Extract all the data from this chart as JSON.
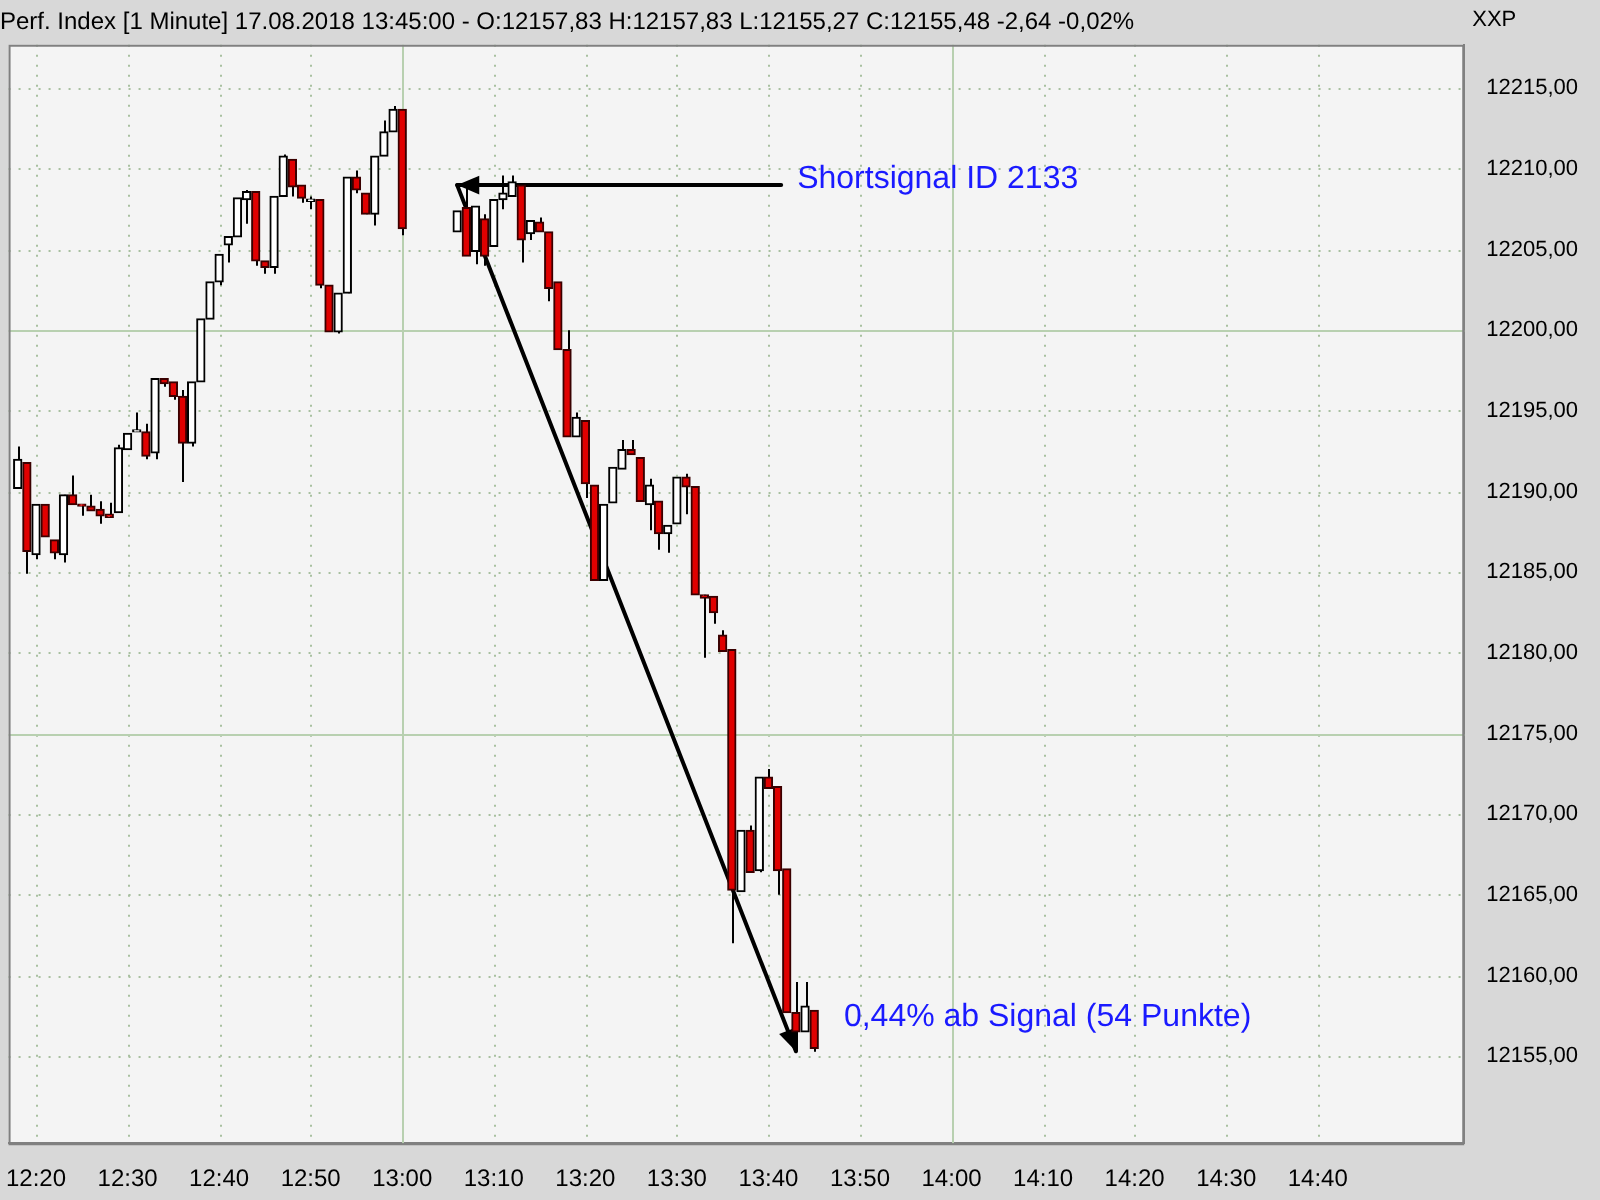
{
  "chart_data": {
    "type": "candlestick",
    "title": "Perf. Index [1 Minute] 17.08.2018 13:45:00 - O:12157,83 H:12157,83 L:12155,27 C:12155,48 -2,64 -0,02%",
    "annotations": [
      {
        "text": "Shortsignal ID 2133",
        "x": "2018-08-17T13:06",
        "y": 12209
      },
      {
        "text": "0,44% ab Signal (54 Punkte)",
        "x": "2018-08-17T13:43",
        "y": 12155.3
      },
      "XXP"
    ],
    "x": [
      "2018-08-17T12:18",
      "2018-08-17T12:19",
      "2018-08-17T12:20",
      "2018-08-17T12:21",
      "2018-08-17T12:22",
      "2018-08-17T12:23",
      "2018-08-17T12:24",
      "2018-08-17T12:25",
      "2018-08-17T12:26",
      "2018-08-17T12:27",
      "2018-08-17T12:28",
      "2018-08-17T12:29",
      "2018-08-17T12:30",
      "2018-08-17T12:31",
      "2018-08-17T12:32",
      "2018-08-17T12:33",
      "2018-08-17T12:34",
      "2018-08-17T12:35",
      "2018-08-17T12:36",
      "2018-08-17T12:37",
      "2018-08-17T12:38",
      "2018-08-17T12:39",
      "2018-08-17T12:40",
      "2018-08-17T12:41",
      "2018-08-17T12:42",
      "2018-08-17T12:43",
      "2018-08-17T12:44",
      "2018-08-17T12:45",
      "2018-08-17T12:46",
      "2018-08-17T12:47",
      "2018-08-17T12:48",
      "2018-08-17T12:49",
      "2018-08-17T12:50",
      "2018-08-17T12:51",
      "2018-08-17T12:52",
      "2018-08-17T12:53",
      "2018-08-17T12:54",
      "2018-08-17T12:55",
      "2018-08-17T12:56",
      "2018-08-17T12:57",
      "2018-08-17T12:58",
      "2018-08-17T12:59",
      "2018-08-17T13:00",
      "2018-08-17T13:06",
      "2018-08-17T13:07",
      "2018-08-17T13:08",
      "2018-08-17T13:09",
      "2018-08-17T13:10",
      "2018-08-17T13:11",
      "2018-08-17T13:12",
      "2018-08-17T13:13",
      "2018-08-17T13:14",
      "2018-08-17T13:15",
      "2018-08-17T13:16",
      "2018-08-17T13:17",
      "2018-08-17T13:18",
      "2018-08-17T13:19",
      "2018-08-17T13:20",
      "2018-08-17T13:21",
      "2018-08-17T13:22",
      "2018-08-17T13:23",
      "2018-08-17T13:24",
      "2018-08-17T13:25",
      "2018-08-17T13:26",
      "2018-08-17T13:27",
      "2018-08-17T13:28",
      "2018-08-17T13:29",
      "2018-08-17T13:30",
      "2018-08-17T13:31",
      "2018-08-17T13:32",
      "2018-08-17T13:33",
      "2018-08-17T13:34",
      "2018-08-17T13:35",
      "2018-08-17T13:36",
      "2018-08-17T13:37",
      "2018-08-17T13:38",
      "2018-08-17T13:39",
      "2018-08-17T13:40",
      "2018-08-17T13:41",
      "2018-08-17T13:42",
      "2018-08-17T13:43",
      "2018-08-17T13:44",
      "2018-08-17T13:45"
    ],
    "ohlc": [
      [
        12190.2,
        12192.8,
        12190.2,
        12192.0
      ],
      [
        12191.8,
        12191.8,
        12184.9,
        12186.3
      ],
      [
        12186.1,
        12189.2,
        12185.8,
        12189.2
      ],
      [
        12189.2,
        12189.2,
        12187.2,
        12187.2
      ],
      [
        12187.0,
        12187.0,
        12185.8,
        12186.2
      ],
      [
        12186.1,
        12189.8,
        12185.6,
        12189.8
      ],
      [
        12189.8,
        12191.0,
        12189.2,
        12189.2
      ],
      [
        12189.2,
        12189.2,
        12188.5,
        12189.1
      ],
      [
        12189.1,
        12189.8,
        12188.8,
        12188.8
      ],
      [
        12188.9,
        12189.4,
        12188.0,
        12188.5
      ],
      [
        12188.6,
        12189.3,
        12188.4,
        12188.4
      ],
      [
        12188.7,
        12192.9,
        12188.7,
        12192.7
      ],
      [
        12192.6,
        12193.6,
        12192.6,
        12193.6
      ],
      [
        12193.7,
        12194.9,
        12193.7,
        12193.7
      ],
      [
        12193.7,
        12194.2,
        12192.0,
        12192.2
      ],
      [
        12192.4,
        12197.0,
        12192.0,
        12197.0
      ],
      [
        12197.0,
        12197.0,
        12196.5,
        12196.7
      ],
      [
        12196.8,
        12196.8,
        12195.7,
        12195.9
      ],
      [
        12195.9,
        12196.3,
        12190.6,
        12193.0
      ],
      [
        12193.0,
        12196.8,
        12192.8,
        12196.8
      ],
      [
        12196.8,
        12200.7,
        12196.8,
        12200.7
      ],
      [
        12200.7,
        12203.0,
        12200.7,
        12203.0
      ],
      [
        12203.0,
        12204.7,
        12202.8,
        12204.7
      ],
      [
        12205.3,
        12205.8,
        12204.2,
        12205.8
      ],
      [
        12205.8,
        12208.2,
        12205.8,
        12208.2
      ],
      [
        12208.1,
        12208.7,
        12206.6,
        12208.6
      ],
      [
        12208.6,
        12208.6,
        12204.0,
        12204.3
      ],
      [
        12204.3,
        12204.3,
        12203.5,
        12203.9
      ],
      [
        12203.9,
        12208.3,
        12203.5,
        12208.3
      ],
      [
        12208.3,
        12210.9,
        12208.3,
        12210.8
      ],
      [
        12210.6,
        12210.6,
        12208.3,
        12208.9
      ],
      [
        12209.0,
        12209.0,
        12207.9,
        12208.2
      ],
      [
        12208.0,
        12208.3,
        12207.5,
        12208.0
      ],
      [
        12208.1,
        12208.1,
        12202.6,
        12202.8
      ],
      [
        12202.8,
        12202.8,
        12199.9,
        12199.9
      ],
      [
        12199.9,
        12202.3,
        12199.8,
        12202.3
      ],
      [
        12202.3,
        12209.5,
        12202.3,
        12209.5
      ],
      [
        12209.5,
        12209.9,
        12208.5,
        12208.7
      ],
      [
        12208.5,
        12208.5,
        12207.2,
        12207.2
      ],
      [
        12207.2,
        12210.8,
        12206.5,
        12210.8
      ],
      [
        12210.8,
        12213.0,
        12210.8,
        12212.3
      ],
      [
        12212.3,
        12213.9,
        12212.3,
        12213.7
      ],
      [
        12213.7,
        12213.7,
        12205.9,
        12206.3
      ],
      [
        12206.1,
        12207.4,
        12206.1,
        12207.4
      ],
      [
        12207.6,
        12209.1,
        12204.6,
        12204.6
      ],
      [
        12204.9,
        12207.7,
        12204.1,
        12207.7
      ],
      [
        12206.9,
        12207.2,
        12204.0,
        12204.6
      ],
      [
        12205.2,
        12208.1,
        12205.2,
        12208.1
      ],
      [
        12208.1,
        12209.6,
        12207.5,
        12208.5
      ],
      [
        12208.3,
        12209.6,
        12208.3,
        12209.2
      ],
      [
        12209.0,
        12209.0,
        12204.2,
        12205.6
      ],
      [
        12206.0,
        12206.8,
        12205.6,
        12206.8
      ],
      [
        12206.7,
        12207.0,
        12206.1,
        12206.1
      ],
      [
        12206.1,
        12206.1,
        12201.8,
        12202.6
      ],
      [
        12203.0,
        12203.0,
        12198.8,
        12198.8
      ],
      [
        12198.8,
        12200.0,
        12193.4,
        12193.4
      ],
      [
        12193.4,
        12194.9,
        12193.4,
        12194.6
      ],
      [
        12194.4,
        12194.4,
        12189.6,
        12190.5
      ],
      [
        12190.4,
        12190.4,
        12184.5,
        12184.5
      ],
      [
        12184.5,
        12189.2,
        12184.5,
        12189.2
      ],
      [
        12189.3,
        12191.5,
        12189.3,
        12191.5
      ],
      [
        12191.4,
        12193.2,
        12191.4,
        12192.6
      ],
      [
        12192.6,
        12193.2,
        12192.3,
        12192.3
      ],
      [
        12192.1,
        12192.1,
        12189.4,
        12189.4
      ],
      [
        12189.2,
        12190.8,
        12187.6,
        12190.4
      ],
      [
        12189.4,
        12189.4,
        12186.4,
        12187.4
      ],
      [
        12187.4,
        12187.9,
        12186.2,
        12187.9
      ],
      [
        12188.0,
        12190.9,
        12188.0,
        12190.9
      ],
      [
        12190.9,
        12191.1,
        12188.6,
        12190.3
      ],
      [
        12190.3,
        12190.3,
        12183.6,
        12183.6
      ],
      [
        12183.6,
        12183.6,
        12179.7,
        12183.4
      ],
      [
        12183.5,
        12183.5,
        12181.8,
        12182.5
      ],
      [
        12181.1,
        12181.4,
        12180.1,
        12180.1
      ],
      [
        12180.2,
        12180.2,
        12162.0,
        12165.3
      ],
      [
        12165.2,
        12169.0,
        12165.2,
        12169.0
      ],
      [
        12169.0,
        12169.3,
        12166.4,
        12166.4
      ],
      [
        12166.5,
        12172.3,
        12166.4,
        12172.3
      ],
      [
        12172.3,
        12172.8,
        12171.6,
        12171.6
      ],
      [
        12171.7,
        12171.7,
        12165.0,
        12166.5
      ],
      [
        12166.6,
        12166.6,
        12157.7,
        12157.7
      ],
      [
        12157.7,
        12159.6,
        12155.3,
        12156.5
      ],
      [
        12156.5,
        12159.6,
        12156.5,
        12158.1
      ],
      [
        12157.83,
        12157.83,
        12155.27,
        12155.48
      ]
    ],
    "xlim": [
      "2018-08-17T12:17",
      "2018-08-17T14:56"
    ],
    "xticks": [
      {
        "value": "2018-08-17T12:20",
        "label": "12:20"
      },
      {
        "value": "2018-08-17T12:30",
        "label": "12:30"
      },
      {
        "value": "2018-08-17T12:40",
        "label": "12:40"
      },
      {
        "value": "2018-08-17T12:50",
        "label": "12:50"
      },
      {
        "value": "2018-08-17T13:00",
        "label": "13:00"
      },
      {
        "value": "2018-08-17T13:10",
        "label": "13:10"
      },
      {
        "value": "2018-08-17T13:20",
        "label": "13:20"
      },
      {
        "value": "2018-08-17T13:30",
        "label": "13:30"
      },
      {
        "value": "2018-08-17T13:40",
        "label": "13:40"
      },
      {
        "value": "2018-08-17T13:50",
        "label": "13:50"
      },
      {
        "value": "2018-08-17T14:00",
        "label": "14:00"
      },
      {
        "value": "2018-08-17T14:10",
        "label": "14:10"
      },
      {
        "value": "2018-08-17T14:20",
        "label": "14:20"
      },
      {
        "value": "2018-08-17T14:30",
        "label": "14:30"
      },
      {
        "value": "2018-08-17T14:40",
        "label": "14:40"
      }
    ],
    "ylim": [
      12149.6,
      12217.7
    ],
    "yticks": [
      {
        "value": 12155,
        "label": "12155,00"
      },
      {
        "value": 12160,
        "label": "12160,00"
      },
      {
        "value": 12165,
        "label": "12165,00"
      },
      {
        "value": 12170,
        "label": "12170,00"
      },
      {
        "value": 12175,
        "label": "12175,00"
      },
      {
        "value": 12180,
        "label": "12180,00"
      },
      {
        "value": 12185,
        "label": "12185,00"
      },
      {
        "value": 12190,
        "label": "12190,00"
      },
      {
        "value": 12195,
        "label": "12195,00"
      },
      {
        "value": 12200,
        "label": "12200,00"
      },
      {
        "value": 12205,
        "label": "12205,00"
      },
      {
        "value": 12210,
        "label": "12210,00"
      },
      {
        "value": 12215,
        "label": "12215,00"
      }
    ],
    "grid": true,
    "legend": false
  }
}
